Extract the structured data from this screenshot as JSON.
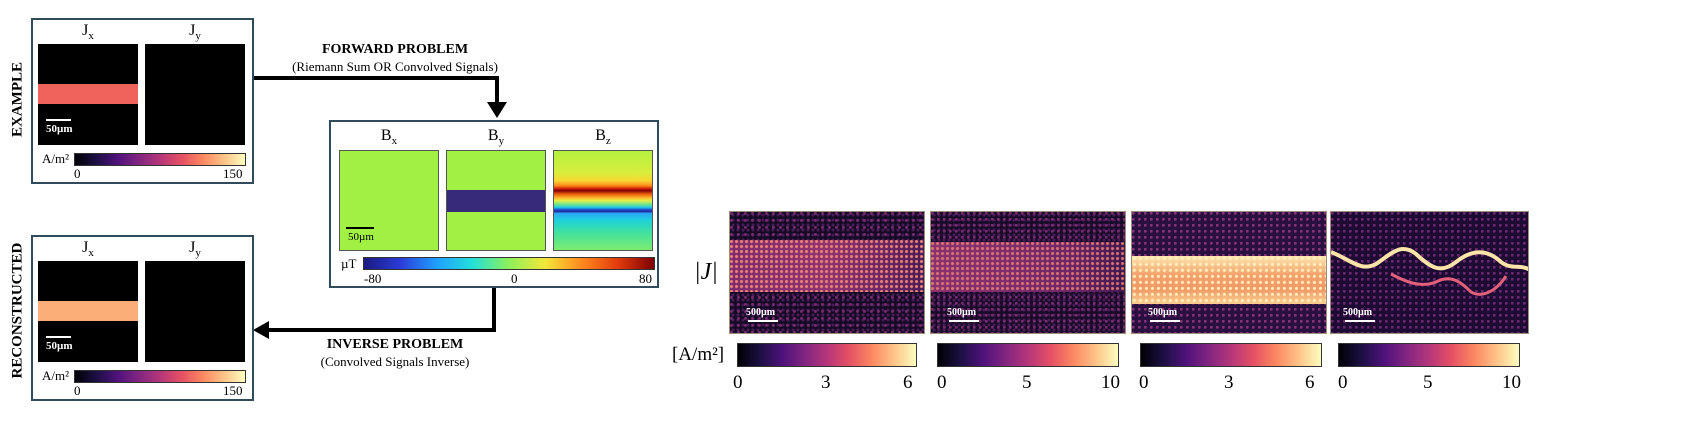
{
  "example": {
    "side_label": "EXAMPLE",
    "jx_main": "J",
    "jx_sub": "x",
    "jy_main": "J",
    "jy_sub": "y",
    "scalebar_text": "50µm",
    "colorbar_unit": "A/m²",
    "colorbar_min": "0",
    "colorbar_max": "150",
    "stripe_color": "#f0625c"
  },
  "reconstructed": {
    "side_label": "RECONSTRUCTED",
    "jx_main": "J",
    "jx_sub": "x",
    "jy_main": "J",
    "jy_sub": "y",
    "scalebar_text": "50µm",
    "colorbar_unit": "A/m²",
    "colorbar_min": "0",
    "colorbar_max": "150",
    "stripe_color": "#fbae78"
  },
  "forward": {
    "title": "FORWARD PROBLEM",
    "subtitle": "(Riemann Sum OR Convolved Signals)"
  },
  "inverse": {
    "title": "INVERSE PROBLEM",
    "subtitle": "(Convolved Signals Inverse)"
  },
  "field": {
    "bx_main": "B",
    "bx_sub": "x",
    "by_main": "B",
    "by_sub": "y",
    "bz_main": "B",
    "bz_sub": "z",
    "scalebar_text": "50µm",
    "colorbar_unit": "µT",
    "colorbar_min": "-80",
    "colorbar_mid": "0",
    "colorbar_max": "80",
    "background_color": "#a2f043",
    "by_stripe_color": "#372a7a"
  },
  "measured": {
    "row_label": "|J|",
    "unit_label": "[A/m²]",
    "scalebar_text": "500µm",
    "panels": [
      {
        "ticks": [
          "0",
          "3",
          "6"
        ]
      },
      {
        "ticks": [
          "0",
          "5",
          "10"
        ]
      },
      {
        "ticks": [
          "0",
          "3",
          "6"
        ]
      },
      {
        "ticks": [
          "0",
          "5",
          "10"
        ]
      }
    ]
  }
}
